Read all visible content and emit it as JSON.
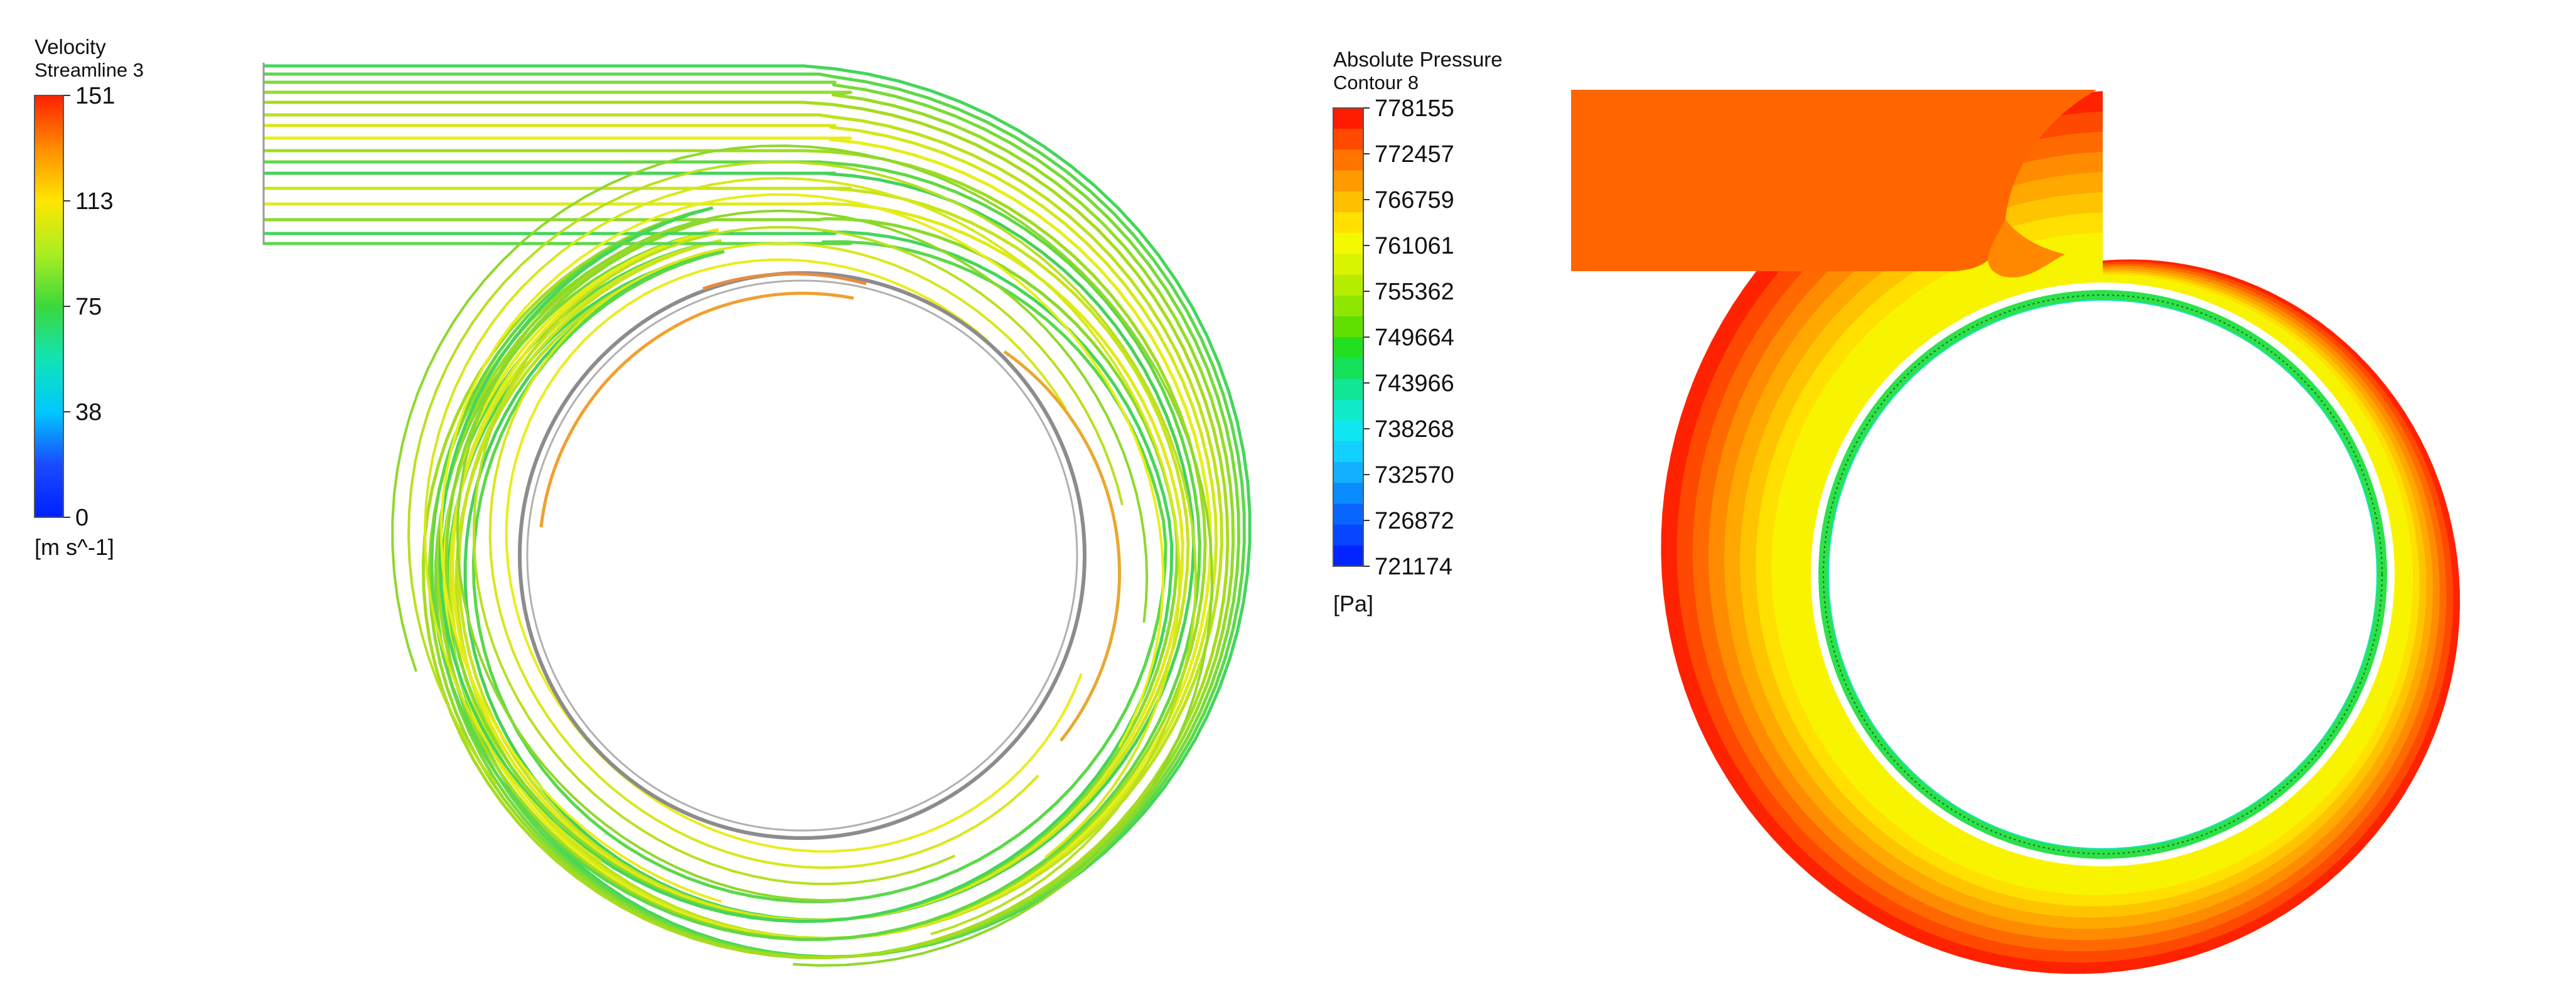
{
  "velocity_legend": {
    "title": "Velocity",
    "subtitle": "Streamline 3",
    "ticks": [
      "151",
      "113",
      "75",
      "38",
      "0"
    ],
    "unit": "[m s^-1]",
    "stops": [
      "#ff2000",
      "#ff8c00",
      "#ffe600",
      "#aaee22",
      "#3cd83c",
      "#10e4b4",
      "#00c8ff",
      "#1a4bff",
      "#0020ff"
    ]
  },
  "pressure_legend": {
    "title": "Absolute Pressure",
    "subtitle": "Contour 8",
    "ticks": [
      "778155",
      "772457",
      "766759",
      "761061",
      "755362",
      "749664",
      "743966",
      "738268",
      "732570",
      "726872",
      "721174"
    ],
    "unit": "[Pa]",
    "bands": [
      "#ff1c00",
      "#ff4a00",
      "#ff7400",
      "#ff9b00",
      "#ffbe00",
      "#ffe000",
      "#f4f800",
      "#d8f400",
      "#b6ec00",
      "#8ee600",
      "#5ee000",
      "#22e020",
      "#14e05a",
      "#10e694",
      "#10eac8",
      "#10e6f2",
      "#12d0ff",
      "#12b0ff",
      "#0a8cff",
      "#0866ff",
      "#0646ff",
      "#0424ff"
    ]
  },
  "colors": {
    "streamline_green": "#44d65a",
    "streamline_lime": "#a6dc1e",
    "streamline_yellow": "#e8ee1a",
    "streamline_orange": "#f0a030",
    "impeller_outline": "#8c8c8c",
    "pressure_ring": "#2ee04a"
  }
}
